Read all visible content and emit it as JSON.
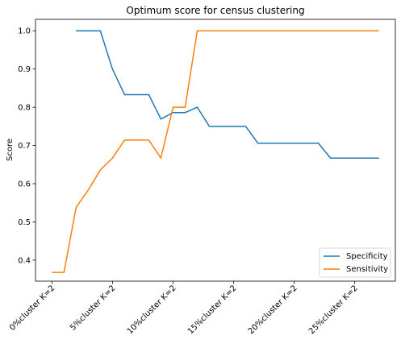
{
  "chart_data": {
    "type": "line",
    "title": "Optimum score for census clustering",
    "xlabel": "",
    "ylabel": "Score",
    "ylim": [
      0.345,
      1.03
    ],
    "yticks": [
      0.4,
      0.5,
      0.6,
      0.7,
      0.8,
      0.9,
      1.0
    ],
    "ytick_labels": [
      "0.4",
      "0.5",
      "0.6",
      "0.7",
      "0.8",
      "0.9",
      "1.0"
    ],
    "xticks": [
      0,
      5,
      10,
      15,
      20,
      25
    ],
    "xtick_labels": [
      "0%cluster K=2",
      "5%cluster K=2",
      "10%cluster K=2",
      "15%cluster K=2",
      "20%cluster K=2",
      "25%cluster K=2"
    ],
    "x": [
      0,
      1,
      2,
      3,
      4,
      5,
      6,
      7,
      8,
      9,
      10,
      11,
      12,
      13,
      14,
      15,
      16,
      17,
      18,
      19,
      20,
      21,
      22,
      23,
      24,
      25,
      26,
      27
    ],
    "series": [
      {
        "name": "Specificity",
        "color": "#1f77b4",
        "values": [
          null,
          null,
          1.0,
          1.0,
          1.0,
          0.9,
          0.833,
          0.833,
          0.833,
          0.769,
          0.786,
          0.786,
          0.8,
          0.75,
          0.75,
          0.75,
          0.75,
          0.706,
          0.706,
          0.706,
          0.706,
          0.706,
          0.706,
          0.667,
          0.667,
          0.667,
          0.667,
          0.667
        ]
      },
      {
        "name": "Sensitivity",
        "color": "#ff7f0e",
        "values": [
          0.368,
          0.368,
          0.538,
          0.583,
          0.636,
          0.667,
          0.714,
          0.714,
          0.714,
          0.667,
          0.8,
          0.8,
          1.0,
          1.0,
          1.0,
          1.0,
          1.0,
          1.0,
          1.0,
          1.0,
          1.0,
          1.0,
          1.0,
          1.0,
          1.0,
          1.0,
          1.0,
          1.0
        ]
      }
    ],
    "xlim": [
      -1.35,
      28.35
    ],
    "grid": false,
    "legend_position": "lower-right"
  }
}
